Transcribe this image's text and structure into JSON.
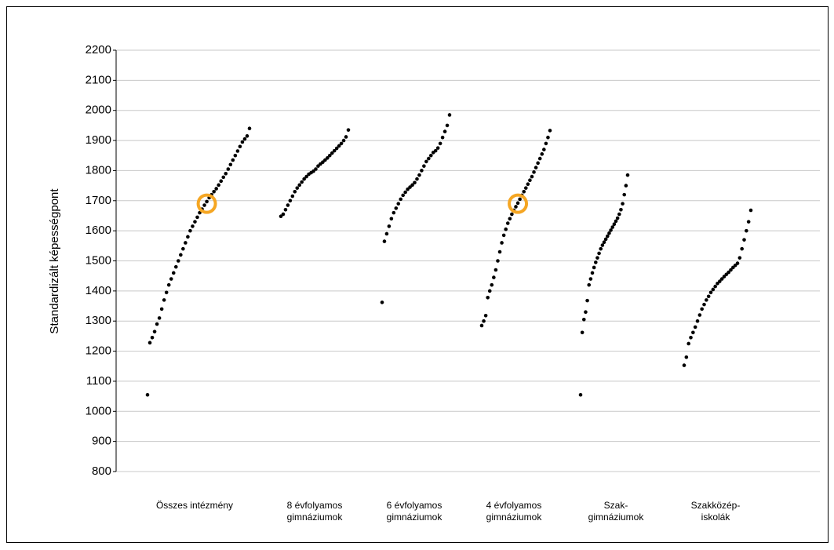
{
  "chart_data": {
    "type": "scatter",
    "y_label": "Standardizált képességpont",
    "ylim": [
      800,
      2200
    ],
    "yticks": [
      800,
      900,
      1000,
      1100,
      1200,
      1300,
      1400,
      1500,
      1600,
      1700,
      1800,
      1900,
      2000,
      2100,
      2200
    ],
    "grid": true,
    "highlight_color": "#f5a623",
    "categories": [
      [
        "Összes intézmény"
      ],
      [
        "8 évfolyamos",
        "gimnáziumok"
      ],
      [
        "6 évfolyamos",
        "gimnáziumok"
      ],
      [
        "4 évfolyamos",
        "gimnáziumok"
      ],
      [
        "Szak-",
        "gimnáziumok"
      ],
      [
        "Szakközép-",
        "iskolák"
      ]
    ],
    "series": [
      {
        "color": "#000000",
        "highlight": 1690,
        "values": [
          1055,
          1228,
          1245,
          1265,
          1290,
          1310,
          1340,
          1370,
          1395,
          1420,
          1440,
          1460,
          1480,
          1500,
          1520,
          1540,
          1560,
          1580,
          1600,
          1615,
          1630,
          1645,
          1660,
          1672,
          1685,
          1697,
          1710,
          1720,
          1730,
          1740,
          1752,
          1765,
          1778,
          1790,
          1805,
          1820,
          1835,
          1850,
          1865,
          1880,
          1895,
          1905,
          1915,
          1940
        ]
      },
      {
        "color": "#000000",
        "values": [
          1648,
          1655,
          1670,
          1685,
          1700,
          1715,
          1730,
          1742,
          1752,
          1762,
          1772,
          1780,
          1788,
          1793,
          1798,
          1805,
          1815,
          1822,
          1828,
          1835,
          1842,
          1850,
          1858,
          1866,
          1874,
          1882,
          1890,
          1900,
          1912,
          1935
        ]
      },
      {
        "color": "#000000",
        "values": [
          1362,
          1565,
          1590,
          1615,
          1640,
          1660,
          1675,
          1690,
          1705,
          1718,
          1728,
          1738,
          1745,
          1752,
          1760,
          1772,
          1785,
          1800,
          1815,
          1830,
          1840,
          1850,
          1860,
          1866,
          1875,
          1890,
          1910,
          1930,
          1950,
          1985
        ]
      },
      {
        "color": "#000000",
        "highlight": 1690,
        "values": [
          1285,
          1300,
          1318,
          1378,
          1400,
          1420,
          1445,
          1470,
          1500,
          1530,
          1560,
          1585,
          1605,
          1625,
          1640,
          1655,
          1668,
          1680,
          1692,
          1705,
          1718,
          1730,
          1742,
          1755,
          1768,
          1780,
          1795,
          1810,
          1825,
          1840,
          1855,
          1870,
          1890,
          1910,
          1933
        ]
      },
      {
        "color": "#000000",
        "values": [
          1055,
          1262,
          1305,
          1330,
          1368,
          1420,
          1440,
          1460,
          1478,
          1495,
          1510,
          1525,
          1540,
          1552,
          1562,
          1572,
          1582,
          1592,
          1602,
          1612,
          1622,
          1632,
          1642,
          1655,
          1670,
          1690,
          1720,
          1750,
          1785
        ]
      },
      {
        "color": "#000000",
        "values": [
          1153,
          1180,
          1225,
          1245,
          1262,
          1280,
          1300,
          1320,
          1340,
          1355,
          1370,
          1382,
          1395,
          1405,
          1415,
          1425,
          1432,
          1440,
          1448,
          1455,
          1462,
          1470,
          1478,
          1485,
          1492,
          1510,
          1540,
          1570,
          1600,
          1630,
          1668
        ]
      }
    ]
  }
}
